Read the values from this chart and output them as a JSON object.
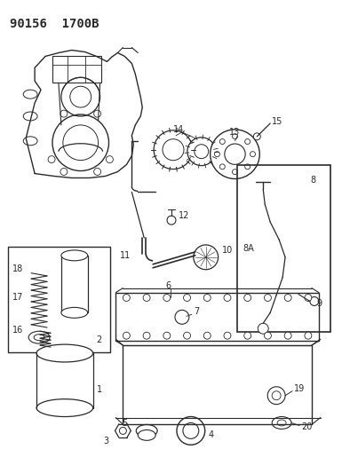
{
  "title": "90156  1700B",
  "bg_color": "#ffffff",
  "title_fontsize": 10,
  "fig_width": 3.85,
  "fig_height": 5.33,
  "dpi": 100,
  "lc": "#2a2a2a",
  "lfs": 7.0
}
